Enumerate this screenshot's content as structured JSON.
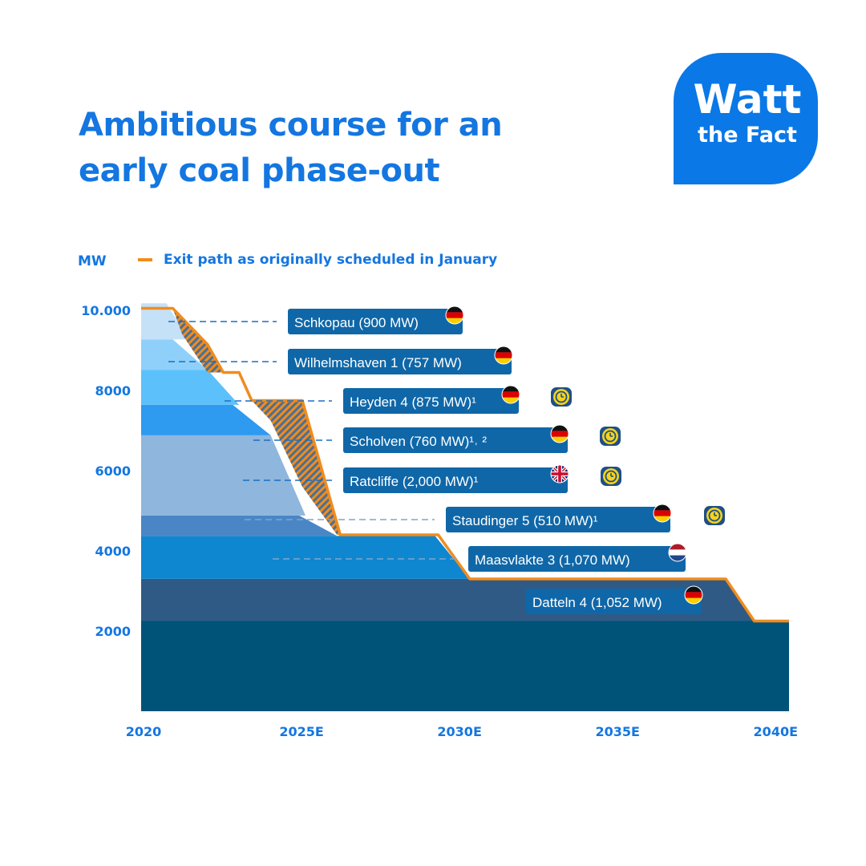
{
  "title": "Ambitious course for an early coal phase-out",
  "logo": {
    "line1": "Watt",
    "line2": "the Fact",
    "color": "#0a78e6"
  },
  "chart_data": {
    "type": "area",
    "title": "Ambitious course for an early coal phase-out",
    "ylabel": "MW",
    "xlabel": "",
    "ylim": [
      0,
      10000
    ],
    "xlim": [
      2020,
      2040.5
    ],
    "y_ticks": [
      {
        "value": 10000,
        "label": "10.000"
      },
      {
        "value": 8000,
        "label": "8000"
      },
      {
        "value": 6000,
        "label": "6000"
      },
      {
        "value": 4000,
        "label": "4000"
      },
      {
        "value": 2000,
        "label": "2000"
      }
    ],
    "x_ticks": [
      {
        "value": 2020,
        "label": "2020"
      },
      {
        "value": 2025,
        "label": "2025E"
      },
      {
        "value": 2030,
        "label": "2030E"
      },
      {
        "value": 2035,
        "label": "2035E"
      },
      {
        "value": 2040,
        "label": "2040E"
      }
    ],
    "grid": false,
    "base_band": {
      "name": "",
      "value": 2250,
      "color": "#005378"
    },
    "stacked_series": [
      {
        "name": "Datteln 4 (1,052 MW)",
        "value": 1052,
        "country": "Germany",
        "flag": "de",
        "color": "#2f5a85",
        "retire_start": 2038.5,
        "retire_end": 2039.4,
        "delayed": false
      },
      {
        "name": "Maasvlakte 3 (1,070 MW)",
        "value": 1070,
        "country": "Netherlands",
        "flag": "nl",
        "color": "#0f86d0",
        "retire_start": 2029.3,
        "retire_end": 2030.4,
        "delayed": false
      },
      {
        "name": "Staudinger 5 (510 MW)¹",
        "value": 510,
        "country": "Germany",
        "flag": "de",
        "color": "#4a86c6",
        "retire_start": 2025.0,
        "retire_end": 2026.2,
        "delayed": true
      },
      {
        "name": "Ratcliffe (2,000 MW)¹",
        "value": 2000,
        "country": "United Kingdom",
        "flag": "gb",
        "color": "#8fb6dc",
        "retire_start": 2024.1,
        "retire_end": 2025.2,
        "delayed": true
      },
      {
        "name": "Scholven (760 MW)¹˒ ²",
        "value": 760,
        "country": "Germany",
        "flag": "de",
        "color": "#2e9af0",
        "retire_start": 2022.9,
        "retire_end": 2024.1,
        "delayed": true
      },
      {
        "name": "Heyden 4 (875 MW)¹",
        "value": 875,
        "country": "Germany",
        "flag": "de",
        "color": "#5cc1fb",
        "retire_start": 2022.1,
        "retire_end": 2023.1,
        "delayed": true
      },
      {
        "name": "Wilhelmshaven 1 (757 MW)",
        "value": 757,
        "country": "Germany",
        "flag": "de",
        "color": "#8fd0fb",
        "retire_start": 2021.0,
        "retire_end": 2022.1,
        "delayed": false
      },
      {
        "name": "Schkopau (900 MW)",
        "value": 900,
        "country": "Germany",
        "flag": "de",
        "color": "#c5e1f7",
        "retire_start": 2020.8,
        "retire_end": 2021.5,
        "delayed": false
      }
    ],
    "original_exit_path": {
      "name": "Exit path as originally scheduled in January",
      "color": "#f08c1e",
      "points": [
        [
          2020,
          10050
        ],
        [
          2021.0,
          10050
        ],
        [
          2022.1,
          9150
        ],
        [
          2022.6,
          8450
        ],
        [
          2023.1,
          8450
        ],
        [
          2023.5,
          7750
        ],
        [
          2025.1,
          7750
        ],
        [
          2026.3,
          4400
        ],
        [
          2029.4,
          4400
        ],
        [
          2030.4,
          3300
        ],
        [
          2038.5,
          3300
        ],
        [
          2039.4,
          2250
        ],
        [
          2040.5,
          2250
        ]
      ]
    },
    "labels": [
      {
        "text": "Schkopau (900 MW)",
        "flag": "de",
        "delayed": false
      },
      {
        "text": "Wilhelmshaven 1 (757 MW)",
        "flag": "de",
        "delayed": false
      },
      {
        "text": "Heyden 4 (875 MW)¹",
        "flag": "de",
        "delayed": true
      },
      {
        "text": "Scholven (760 MW)¹˒ ²",
        "flag": "de",
        "delayed": true
      },
      {
        "text": "Ratcliffe (2,000 MW)¹",
        "flag": "gb",
        "delayed": true
      },
      {
        "text": "Staudinger 5 (510 MW)¹",
        "flag": "de",
        "delayed": true
      },
      {
        "text": "Maasvlakte 3 (1,070 MW)",
        "flag": "nl",
        "delayed": false
      },
      {
        "text": "Datteln 4 (1,052 MW)",
        "flag": "de",
        "delayed": false
      }
    ],
    "colors": {
      "axis_text": "#1476e0",
      "label_box": "#0f67a8",
      "hatch": "#f08c1e",
      "clock": "#f6d31a"
    }
  }
}
